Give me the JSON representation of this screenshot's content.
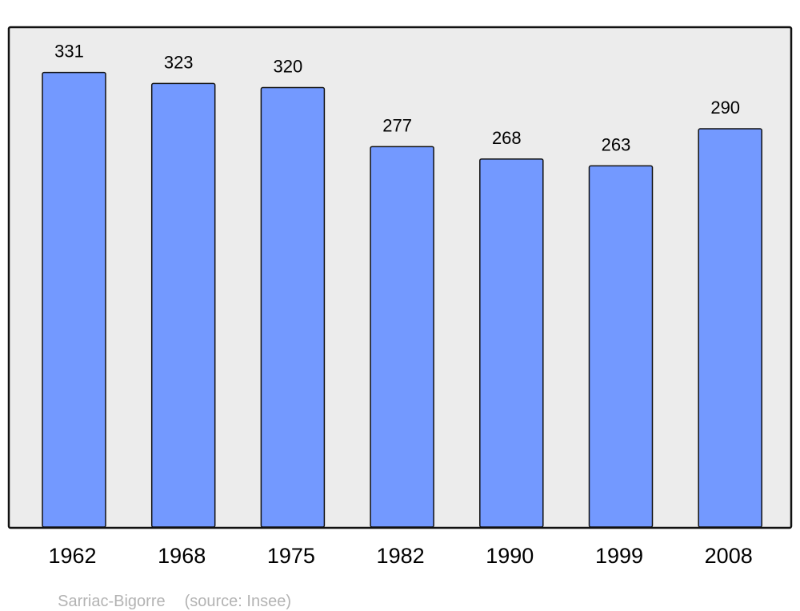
{
  "chart_data": {
    "type": "bar",
    "categories": [
      "1962",
      "1968",
      "1975",
      "1982",
      "1990",
      "1999",
      "2008"
    ],
    "values": [
      331,
      323,
      320,
      277,
      268,
      263,
      290
    ],
    "title": "",
    "xlabel": "",
    "ylabel": "",
    "ylim": [
      0,
      364
    ],
    "grid": false,
    "bar_color": "#7399ff",
    "plot_background": "#ececec",
    "data_labels": true
  },
  "footer": {
    "place": "Sarriac-Bigorre",
    "source": "(source: Insee)"
  }
}
